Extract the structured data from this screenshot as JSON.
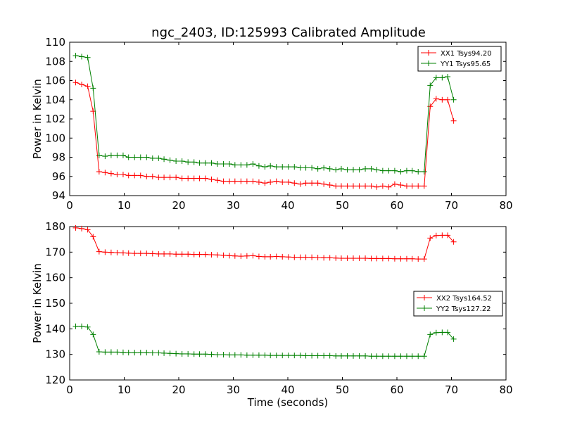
{
  "figure": {
    "title": "ngc_2403, ID:125993 Calibrated Amplitude"
  },
  "colors": {
    "series_red": "#ff0000",
    "series_green": "#008000",
    "axes": "#000000",
    "background": "#ffffff"
  },
  "chart_data": [
    {
      "type": "line",
      "title": "ngc_2403, ID:125993 Calibrated Amplitude",
      "xlabel": "",
      "ylabel": "Power in Kelvin",
      "xlim": [
        0,
        80
      ],
      "ylim": [
        94,
        110
      ],
      "xticks": [
        0,
        10,
        20,
        30,
        40,
        50,
        60,
        70,
        80
      ],
      "yticks": [
        94,
        96,
        98,
        100,
        102,
        104,
        106,
        108,
        110
      ],
      "grid": false,
      "legend_position": "top-right",
      "marker": "plus",
      "series": [
        {
          "name": "XX1 Tsys94.20",
          "color": "#ff0000",
          "x": [
            1.1,
            2.2,
            3.3,
            4.3,
            5.4,
            6.5,
            7.6,
            8.7,
            9.8,
            10.8,
            11.9,
            13.0,
            14.1,
            15.2,
            16.3,
            17.3,
            18.4,
            19.5,
            20.6,
            21.7,
            22.8,
            23.8,
            24.9,
            26.0,
            27.1,
            28.2,
            29.3,
            30.3,
            31.4,
            32.5,
            33.6,
            34.7,
            35.8,
            36.8,
            37.9,
            39.0,
            40.1,
            41.2,
            42.3,
            43.3,
            44.4,
            45.5,
            46.6,
            47.7,
            48.8,
            49.8,
            50.9,
            52.0,
            53.1,
            54.2,
            55.3,
            56.3,
            57.4,
            58.5,
            59.6,
            60.7,
            61.8,
            62.8,
            63.9,
            65.0,
            66.1,
            67.2,
            68.3,
            69.3,
            70.4
          ],
          "y": [
            105.8,
            105.6,
            105.4,
            102.8,
            96.5,
            96.4,
            96.3,
            96.2,
            96.2,
            96.1,
            96.1,
            96.1,
            96.0,
            96.0,
            95.9,
            95.9,
            95.9,
            95.9,
            95.8,
            95.8,
            95.8,
            95.8,
            95.8,
            95.7,
            95.6,
            95.5,
            95.5,
            95.5,
            95.5,
            95.5,
            95.5,
            95.4,
            95.3,
            95.4,
            95.5,
            95.4,
            95.4,
            95.3,
            95.2,
            95.3,
            95.3,
            95.3,
            95.2,
            95.1,
            95.0,
            95.0,
            95.0,
            95.0,
            95.0,
            95.0,
            95.0,
            94.9,
            95.0,
            94.9,
            95.2,
            95.1,
            95.0,
            95.0,
            95.0,
            95.0,
            103.3,
            104.1,
            104.0,
            104.0,
            101.8
          ]
        },
        {
          "name": "YY1 Tsys95.65",
          "color": "#008000",
          "x": [
            1.1,
            2.2,
            3.3,
            4.3,
            5.4,
            6.5,
            7.6,
            8.7,
            9.8,
            10.8,
            11.9,
            13.0,
            14.1,
            15.2,
            16.3,
            17.3,
            18.4,
            19.5,
            20.6,
            21.7,
            22.8,
            23.8,
            24.9,
            26.0,
            27.1,
            28.2,
            29.3,
            30.3,
            31.4,
            32.5,
            33.6,
            34.7,
            35.8,
            36.8,
            37.9,
            39.0,
            40.1,
            41.2,
            42.3,
            43.3,
            44.4,
            45.5,
            46.6,
            47.7,
            48.8,
            49.8,
            50.9,
            52.0,
            53.1,
            54.2,
            55.3,
            56.3,
            57.4,
            58.5,
            59.6,
            60.7,
            61.8,
            62.8,
            63.9,
            65.0,
            66.1,
            67.2,
            68.3,
            69.3,
            70.4
          ],
          "y": [
            108.6,
            108.5,
            108.4,
            105.2,
            98.2,
            98.1,
            98.2,
            98.2,
            98.2,
            98.0,
            98.0,
            98.0,
            98.0,
            97.9,
            97.9,
            97.8,
            97.7,
            97.6,
            97.6,
            97.5,
            97.5,
            97.4,
            97.4,
            97.4,
            97.3,
            97.3,
            97.3,
            97.2,
            97.2,
            97.2,
            97.3,
            97.1,
            97.0,
            97.1,
            97.0,
            97.0,
            97.0,
            97.0,
            96.9,
            96.9,
            96.9,
            96.8,
            96.9,
            96.8,
            96.7,
            96.8,
            96.7,
            96.7,
            96.7,
            96.8,
            96.8,
            96.7,
            96.6,
            96.6,
            96.6,
            96.5,
            96.6,
            96.6,
            96.5,
            96.5,
            105.5,
            106.3,
            106.3,
            106.4,
            104.0
          ]
        }
      ]
    },
    {
      "type": "line",
      "title": "",
      "xlabel": "Time (seconds)",
      "ylabel": "Power in Kelvin",
      "xlim": [
        0,
        80
      ],
      "ylim": [
        120,
        180
      ],
      "xticks": [
        0,
        10,
        20,
        30,
        40,
        50,
        60,
        70,
        80
      ],
      "yticks": [
        120,
        130,
        140,
        150,
        160,
        170,
        180
      ],
      "grid": false,
      "legend_position": "center-right",
      "marker": "plus",
      "series": [
        {
          "name": "XX2 Tsys164.52",
          "color": "#ff0000",
          "x": [
            1.1,
            2.2,
            3.3,
            4.3,
            5.4,
            6.5,
            7.6,
            8.7,
            9.8,
            10.8,
            11.9,
            13.0,
            14.1,
            15.2,
            16.3,
            17.3,
            18.4,
            19.5,
            20.6,
            21.7,
            22.8,
            23.8,
            24.9,
            26.0,
            27.1,
            28.2,
            29.3,
            30.3,
            31.4,
            32.5,
            33.6,
            34.7,
            35.8,
            36.8,
            37.9,
            39.0,
            40.1,
            41.2,
            42.3,
            43.3,
            44.4,
            45.5,
            46.6,
            47.7,
            48.8,
            49.8,
            50.9,
            52.0,
            53.1,
            54.2,
            55.3,
            56.3,
            57.4,
            58.5,
            59.6,
            60.7,
            61.8,
            62.8,
            63.9,
            65.0,
            66.1,
            67.2,
            68.3,
            69.3,
            70.4
          ],
          "y": [
            179.5,
            179.2,
            178.8,
            176.0,
            170.2,
            170.0,
            169.9,
            169.8,
            169.7,
            169.6,
            169.5,
            169.5,
            169.5,
            169.4,
            169.3,
            169.3,
            169.3,
            169.2,
            169.2,
            169.2,
            169.1,
            169.1,
            169.1,
            169.0,
            168.9,
            168.8,
            168.6,
            168.5,
            168.4,
            168.5,
            168.6,
            168.3,
            168.2,
            168.2,
            168.3,
            168.2,
            168.1,
            168.0,
            168.0,
            168.0,
            168.0,
            167.9,
            167.8,
            167.8,
            167.7,
            167.6,
            167.6,
            167.6,
            167.6,
            167.6,
            167.5,
            167.5,
            167.5,
            167.5,
            167.4,
            167.4,
            167.4,
            167.4,
            167.3,
            167.3,
            175.5,
            176.5,
            176.6,
            176.6,
            174.0
          ]
        },
        {
          "name": "YY2 Tsys127.22",
          "color": "#008000",
          "x": [
            1.1,
            2.2,
            3.3,
            4.3,
            5.4,
            6.5,
            7.6,
            8.7,
            9.8,
            10.8,
            11.9,
            13.0,
            14.1,
            15.2,
            16.3,
            17.3,
            18.4,
            19.5,
            20.6,
            21.7,
            22.8,
            23.8,
            24.9,
            26.0,
            27.1,
            28.2,
            29.3,
            30.3,
            31.4,
            32.5,
            33.6,
            34.7,
            35.8,
            36.8,
            37.9,
            39.0,
            40.1,
            41.2,
            42.3,
            43.3,
            44.4,
            45.5,
            46.6,
            47.7,
            48.8,
            49.8,
            50.9,
            52.0,
            53.1,
            54.2,
            55.3,
            56.3,
            57.4,
            58.5,
            59.6,
            60.7,
            61.8,
            62.8,
            63.9,
            65.0,
            66.1,
            67.2,
            68.3,
            69.3,
            70.4
          ],
          "y": [
            141.0,
            141.0,
            140.7,
            137.8,
            131.0,
            130.9,
            130.9,
            130.9,
            130.8,
            130.7,
            130.7,
            130.7,
            130.7,
            130.6,
            130.6,
            130.5,
            130.4,
            130.3,
            130.2,
            130.2,
            130.1,
            130.1,
            130.1,
            130.0,
            129.9,
            129.9,
            129.8,
            129.8,
            129.8,
            129.7,
            129.7,
            129.7,
            129.7,
            129.6,
            129.6,
            129.6,
            129.6,
            129.6,
            129.6,
            129.5,
            129.5,
            129.5,
            129.5,
            129.5,
            129.4,
            129.4,
            129.4,
            129.4,
            129.4,
            129.4,
            129.3,
            129.3,
            129.3,
            129.3,
            129.3,
            129.3,
            129.3,
            129.3,
            129.3,
            129.3,
            137.8,
            138.5,
            138.6,
            138.6,
            136.0
          ]
        }
      ]
    }
  ]
}
